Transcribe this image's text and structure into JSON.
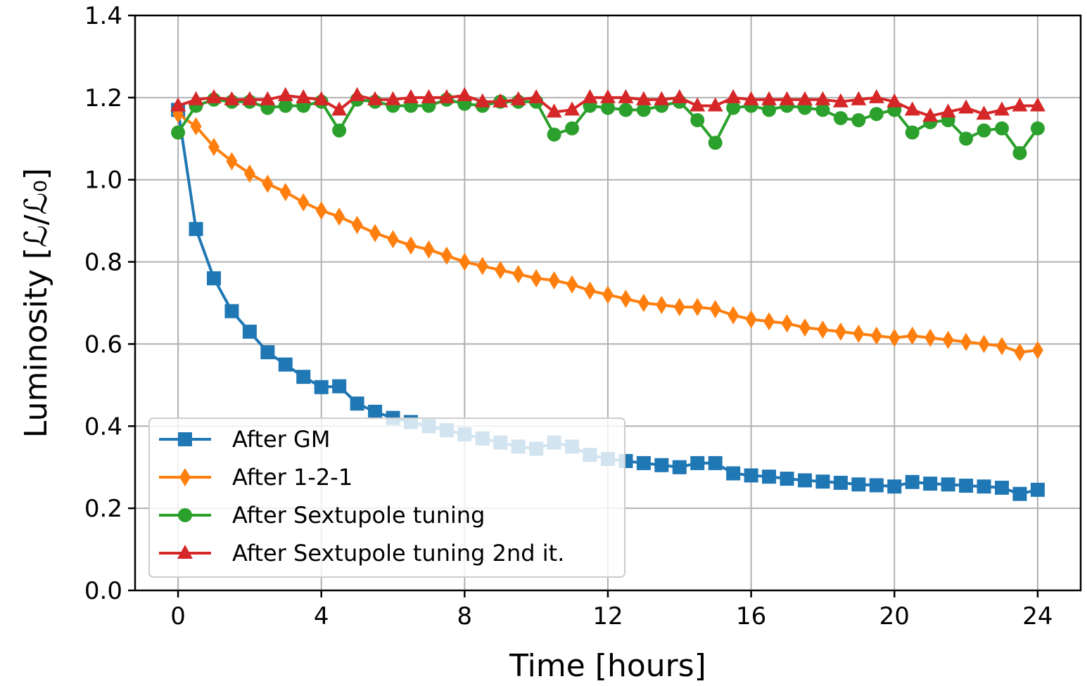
{
  "chart_data": {
    "type": "line",
    "xlabel": "Time [hours]",
    "ylabel": "Luminosity [ℒ/ℒ₀]",
    "xlim": [
      -1.2,
      25.2
    ],
    "ylim": [
      0.0,
      1.4
    ],
    "xticks": [
      0,
      4,
      8,
      12,
      16,
      20,
      24
    ],
    "yticks": [
      0.0,
      0.2,
      0.4,
      0.6,
      0.8,
      1.0,
      1.2,
      1.4
    ],
    "xtick_labels": [
      "0",
      "4",
      "8",
      "12",
      "16",
      "20",
      "24"
    ],
    "ytick_labels": [
      "0.0",
      "0.2",
      "0.4",
      "0.6",
      "0.8",
      "1.0",
      "1.2",
      "1.4"
    ],
    "grid": true,
    "legend_position": "lower-left",
    "x": [
      0,
      0.5,
      1,
      1.5,
      2,
      2.5,
      3,
      3.5,
      4,
      4.5,
      5,
      5.5,
      6,
      6.5,
      7,
      7.5,
      8,
      8.5,
      9,
      9.5,
      10,
      10.5,
      11,
      11.5,
      12,
      12.5,
      13,
      13.5,
      14,
      14.5,
      15,
      15.5,
      16,
      16.5,
      17,
      17.5,
      18,
      18.5,
      19,
      19.5,
      20,
      20.5,
      21,
      21.5,
      22,
      22.5,
      23,
      23.5,
      24
    ],
    "series": [
      {
        "name": "After GM",
        "color": "#1f77b4",
        "marker": "square",
        "values": [
          1.17,
          0.88,
          0.76,
          0.68,
          0.63,
          0.58,
          0.55,
          0.52,
          0.495,
          0.497,
          0.455,
          0.435,
          0.42,
          0.41,
          0.4,
          0.39,
          0.38,
          0.37,
          0.36,
          0.35,
          0.345,
          0.36,
          0.35,
          0.33,
          0.32,
          0.315,
          0.31,
          0.305,
          0.3,
          0.31,
          0.31,
          0.285,
          0.28,
          0.277,
          0.272,
          0.268,
          0.265,
          0.262,
          0.258,
          0.256,
          0.253,
          0.264,
          0.26,
          0.258,
          0.255,
          0.253,
          0.25,
          0.235,
          0.245
        ]
      },
      {
        "name": "After 1-2-1",
        "color": "#ff7f0e",
        "marker": "diamond",
        "values": [
          1.16,
          1.13,
          1.08,
          1.045,
          1.015,
          0.99,
          0.97,
          0.945,
          0.925,
          0.91,
          0.89,
          0.87,
          0.855,
          0.84,
          0.83,
          0.815,
          0.8,
          0.79,
          0.78,
          0.77,
          0.76,
          0.755,
          0.745,
          0.73,
          0.72,
          0.71,
          0.7,
          0.695,
          0.69,
          0.69,
          0.685,
          0.67,
          0.66,
          0.655,
          0.65,
          0.64,
          0.635,
          0.63,
          0.625,
          0.62,
          0.615,
          0.62,
          0.615,
          0.61,
          0.605,
          0.6,
          0.595,
          0.58,
          0.585
        ]
      },
      {
        "name": "After Sextupole tuning",
        "color": "#2ca02c",
        "marker": "circle",
        "values": [
          1.115,
          1.18,
          1.195,
          1.19,
          1.19,
          1.175,
          1.18,
          1.18,
          1.19,
          1.12,
          1.195,
          1.19,
          1.18,
          1.18,
          1.18,
          1.195,
          1.185,
          1.18,
          1.19,
          1.19,
          1.19,
          1.11,
          1.125,
          1.18,
          1.175,
          1.17,
          1.17,
          1.18,
          1.19,
          1.145,
          1.09,
          1.175,
          1.18,
          1.17,
          1.18,
          1.175,
          1.17,
          1.15,
          1.145,
          1.16,
          1.17,
          1.115,
          1.14,
          1.145,
          1.1,
          1.12,
          1.125,
          1.065,
          1.125
        ]
      },
      {
        "name": "After Sextupole tuning 2nd it.",
        "color": "#d62728",
        "marker": "triangle",
        "values": [
          1.18,
          1.195,
          1.2,
          1.195,
          1.195,
          1.195,
          1.205,
          1.2,
          1.195,
          1.17,
          1.205,
          1.195,
          1.195,
          1.2,
          1.2,
          1.2,
          1.205,
          1.19,
          1.19,
          1.195,
          1.2,
          1.165,
          1.17,
          1.2,
          1.2,
          1.2,
          1.195,
          1.195,
          1.2,
          1.18,
          1.18,
          1.2,
          1.195,
          1.195,
          1.195,
          1.195,
          1.195,
          1.19,
          1.195,
          1.2,
          1.19,
          1.17,
          1.155,
          1.165,
          1.175,
          1.16,
          1.17,
          1.18,
          1.18
        ]
      }
    ]
  }
}
